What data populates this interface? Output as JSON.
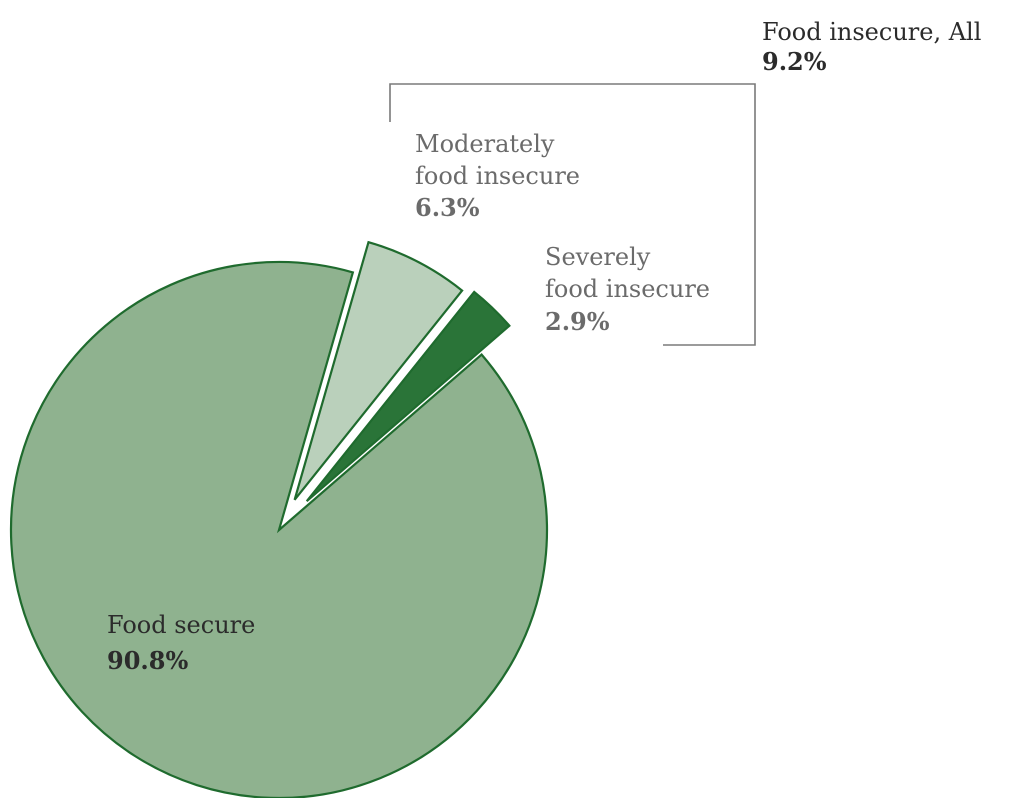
{
  "chart_data": {
    "type": "pie",
    "slices": [
      {
        "name": "Food secure",
        "value": 90.8,
        "label_lines": [
          "Food secure"
        ],
        "value_label": "90.8%",
        "color": "#8fb28f",
        "text_color": "#2b2b2b"
      },
      {
        "name": "Moderately food insecure",
        "value": 6.3,
        "label_lines": [
          "Moderately",
          "food insecure"
        ],
        "value_label": "6.3%",
        "color": "#bad0bb",
        "text_color": "#6b6b6b"
      },
      {
        "name": "Severely food insecure",
        "value": 2.9,
        "label_lines": [
          "Severely",
          "food insecure"
        ],
        "value_label": "2.9%",
        "color": "#2a7438",
        "text_color": "#6b6b6b"
      }
    ],
    "group_annotation": {
      "label": "Food insecure, All",
      "value_label": "9.2%",
      "text_color": "#2b2b2b",
      "bracket_color": "#7a7a7a"
    },
    "stroke_color": "#1f6b2e"
  }
}
